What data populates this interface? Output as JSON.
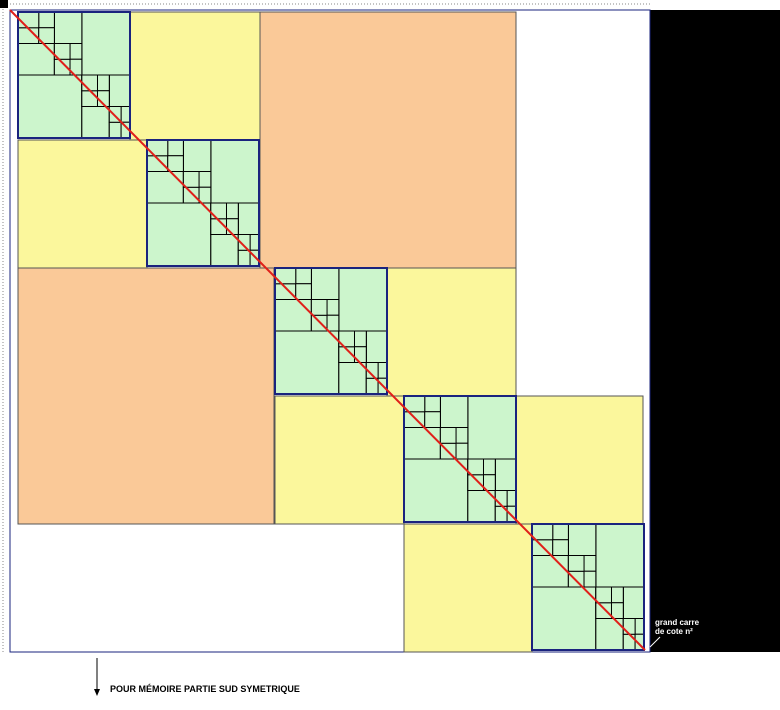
{
  "annotations": {
    "corner_label_line1": "grand carre",
    "corner_label_line2": "de cote n²",
    "footer": "POUR MÉMOIRE PARTIE SUD SYMETRIQUE"
  }
}
